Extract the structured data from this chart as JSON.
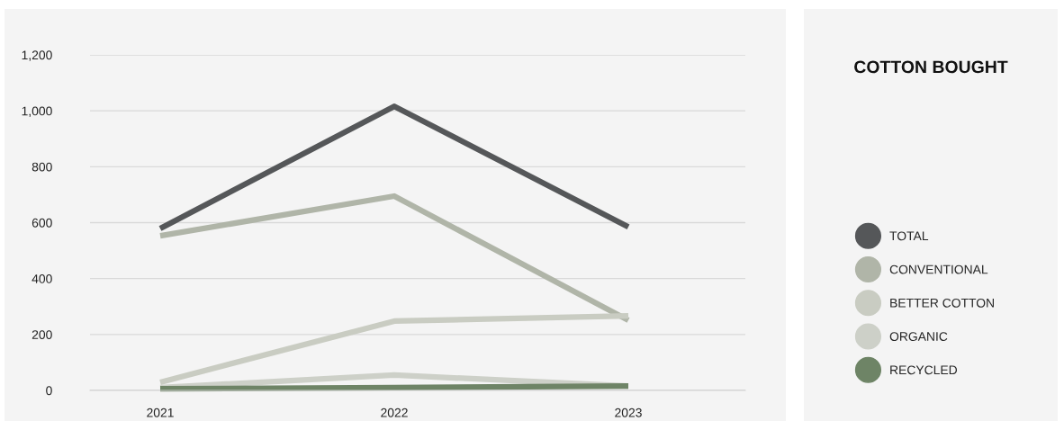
{
  "chart_data": {
    "type": "line",
    "title": "COTTON BOUGHT",
    "categories": [
      "2021",
      "2022",
      "2023"
    ],
    "series": [
      {
        "name": "TOTAL",
        "color": "#555759",
        "values": [
          579,
          1016,
          585
        ]
      },
      {
        "name": "CONVENTIONAL",
        "color": "#b0b5a8",
        "values": [
          553,
          695,
          251
        ]
      },
      {
        "name": "BETTER COTTON",
        "color": "#c9ccc2",
        "values": [
          29,
          248,
          267
        ]
      },
      {
        "name": "ORGANIC",
        "color": "#cdd0c8",
        "values": [
          10,
          55,
          16
        ]
      },
      {
        "name": "RECYCLED",
        "color": "#6e8466",
        "values": [
          6,
          10,
          16
        ]
      }
    ],
    "ylim": [
      0,
      1200
    ],
    "yticks": [
      0,
      200,
      400,
      600,
      800,
      {
        "value": 1000,
        "label": "1,000"
      },
      {
        "value": 1200,
        "label": "1,200"
      }
    ],
    "grid": "y",
    "legend": "right",
    "marker": "none",
    "line_style": "solid"
  }
}
